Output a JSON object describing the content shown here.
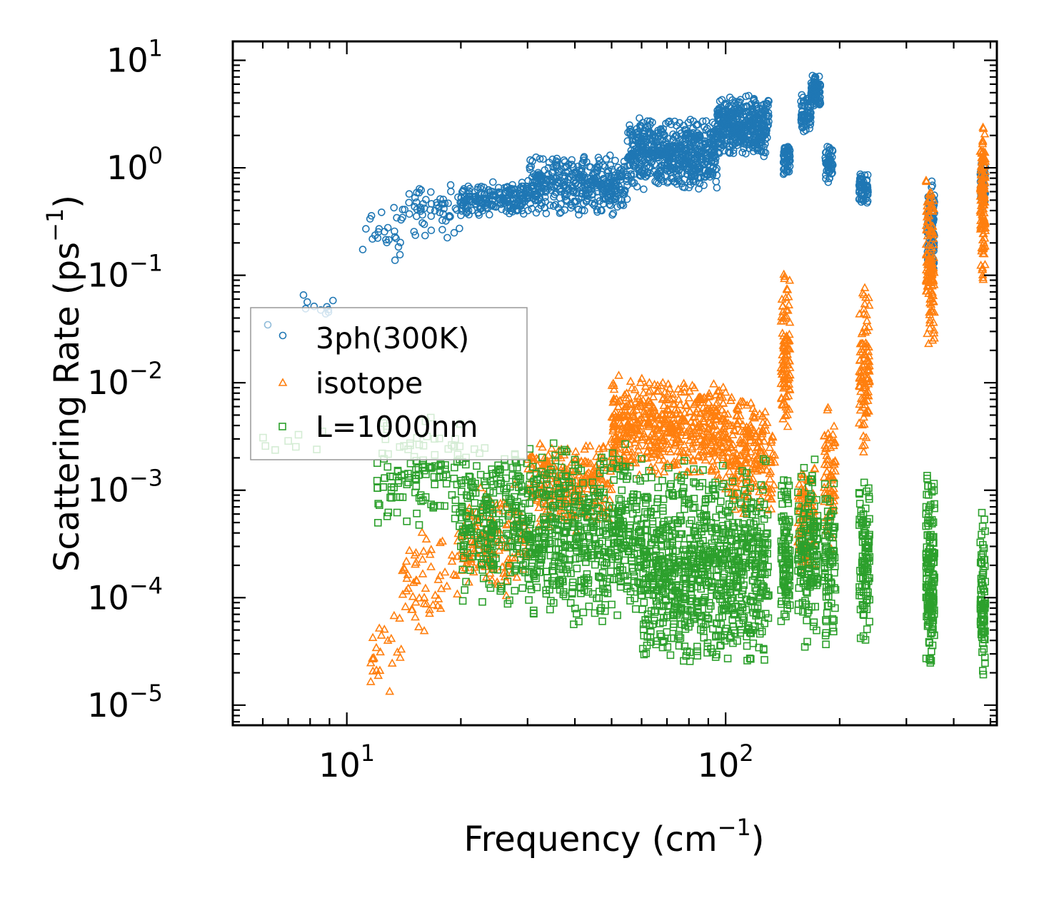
{
  "chart_data": {
    "type": "scatter",
    "title": "",
    "xlabel": "Frequency (cm",
    "xlabel_sup": "−1",
    "xlabel_close": ")",
    "ylabel": "Scattering Rate (ps",
    "ylabel_sup": "−1",
    "ylabel_close": ")",
    "xscale": "log",
    "yscale": "log",
    "xlim": [
      5.0,
      520
    ],
    "ylim": [
      6.5e-06,
      15
    ],
    "x_ticks": [
      {
        "value": 10,
        "base": "10",
        "exp": "1"
      },
      {
        "value": 100,
        "base": "10",
        "exp": "2"
      }
    ],
    "y_ticks": [
      {
        "value": 10,
        "base": "10",
        "exp": "1"
      },
      {
        "value": 1,
        "base": "10",
        "exp": "0"
      },
      {
        "value": 0.1,
        "base": "10",
        "exp": "−1"
      },
      {
        "value": 0.01,
        "base": "10",
        "exp": "−2"
      },
      {
        "value": 0.001,
        "base": "10",
        "exp": "−3"
      },
      {
        "value": 0.0001,
        "base": "10",
        "exp": "−4"
      },
      {
        "value": 1e-05,
        "base": "10",
        "exp": "−5"
      }
    ],
    "legend_position": "center-left",
    "series": [
      {
        "name": "3ph(300K)",
        "marker": "circle",
        "color": "#1f77b4",
        "clusters": [
          {
            "x": [
              7.4,
              9.2
            ],
            "y": [
              0.03,
              0.08
            ],
            "n": 10
          },
          {
            "x": [
              11.0,
              14.0
            ],
            "y": [
              0.1,
              0.7
            ],
            "n": 25
          },
          {
            "x": [
              14.0,
              20.0
            ],
            "y": [
              0.2,
              0.8
            ],
            "n": 60
          },
          {
            "x": [
              20.0,
              30.0
            ],
            "y": [
              0.35,
              0.75
            ],
            "n": 200
          },
          {
            "x": [
              30.0,
              55.0
            ],
            "y": [
              0.35,
              1.4
            ],
            "n": 400
          },
          {
            "x": [
              55.0,
              95.0
            ],
            "y": [
              0.6,
              3.0
            ],
            "n": 600
          },
          {
            "x": [
              95.0,
              130.0
            ],
            "y": [
              1.2,
              5.0
            ],
            "n": 400
          },
          {
            "x": [
              142.0,
              148.0
            ],
            "y": [
              0.8,
              1.8
            ],
            "n": 60
          },
          {
            "x": [
              158.0,
              168.0
            ],
            "y": [
              2.0,
              5.0
            ],
            "n": 70
          },
          {
            "x": [
              168.0,
              178.0
            ],
            "y": [
              3.5,
              7.5
            ],
            "n": 90
          },
          {
            "x": [
              183.0,
              192.0
            ],
            "y": [
              0.7,
              1.6
            ],
            "n": 50
          },
          {
            "x": [
              225.0,
              238.0
            ],
            "y": [
              0.45,
              0.95
            ],
            "n": 60
          },
          {
            "x": [
              340.0,
              356.0
            ],
            "y": [
              0.1,
              0.8
            ],
            "n": 90
          },
          {
            "x": [
              470.0,
              485.0
            ],
            "y": [
              0.4,
              1.2
            ],
            "n": 50
          }
        ]
      },
      {
        "name": "isotope",
        "marker": "triangle",
        "color": "#ff7f0e",
        "clusters": [
          {
            "x": [
              11.5,
              14.0
            ],
            "y": [
              1.2e-05,
              0.00013
            ],
            "n": 25
          },
          {
            "x": [
              14.0,
              20.0
            ],
            "y": [
              4e-05,
              0.0005
            ],
            "n": 60
          },
          {
            "x": [
              20.0,
              30.0
            ],
            "y": [
              0.0001,
              0.0012
            ],
            "n": 150
          },
          {
            "x": [
              30.0,
              50.0
            ],
            "y": [
              0.0004,
              0.003
            ],
            "n": 250
          },
          {
            "x": [
              50.0,
              100.0
            ],
            "y": [
              0.0012,
              0.012
            ],
            "n": 550
          },
          {
            "x": [
              100.0,
              135.0
            ],
            "y": [
              0.0005,
              0.009
            ],
            "n": 220
          },
          {
            "x": [
              140.0,
              148.0
            ],
            "y": [
              0.002,
              0.13
            ],
            "n": 100
          },
          {
            "x": [
              155.0,
              172.0
            ],
            "y": [
              0.00015,
              0.002
            ],
            "n": 90
          },
          {
            "x": [
              182.0,
              195.0
            ],
            "y": [
              0.0002,
              0.008
            ],
            "n": 70
          },
          {
            "x": [
              225.0,
              240.0
            ],
            "y": [
              0.002,
              0.12
            ],
            "n": 100
          },
          {
            "x": [
              338.0,
              356.0
            ],
            "y": [
              0.02,
              1.0
            ],
            "n": 130
          },
          {
            "x": [
              470.0,
              485.0
            ],
            "y": [
              0.08,
              3.5
            ],
            "n": 130
          }
        ]
      },
      {
        "name": "L=1000nm",
        "marker": "square",
        "color": "#2ca02c",
        "clusters": [
          {
            "x": [
              6.0,
              9.0
            ],
            "y": [
              0.002,
              0.004
            ],
            "n": 8
          },
          {
            "x": [
              12.0,
              20.0
            ],
            "y": [
              0.0004,
              0.005
            ],
            "n": 120
          },
          {
            "x": [
              20.0,
              30.0
            ],
            "y": [
              8e-05,
              0.003
            ],
            "n": 250
          },
          {
            "x": [
              30.0,
              60.0
            ],
            "y": [
              5e-05,
              0.003
            ],
            "n": 550
          },
          {
            "x": [
              60.0,
              130.0
            ],
            "y": [
              2e-05,
              0.002
            ],
            "n": 850
          },
          {
            "x": [
              140.0,
              148.0
            ],
            "y": [
              5e-05,
              0.0015
            ],
            "n": 100
          },
          {
            "x": [
              155.0,
              175.0
            ],
            "y": [
              3e-05,
              0.002
            ],
            "n": 150
          },
          {
            "x": [
              182.0,
              195.0
            ],
            "y": [
              3e-05,
              0.0015
            ],
            "n": 80
          },
          {
            "x": [
              225.0,
              240.0
            ],
            "y": [
              3e-05,
              0.0015
            ],
            "n": 100
          },
          {
            "x": [
              338.0,
              356.0
            ],
            "y": [
              2e-05,
              0.0018
            ],
            "n": 150
          },
          {
            "x": [
              470.0,
              485.0
            ],
            "y": [
              1.1e-05,
              0.0007
            ],
            "n": 80
          }
        ]
      }
    ]
  },
  "legend": [
    {
      "label": "3ph(300K)"
    },
    {
      "label": "isotope"
    },
    {
      "label": "L=1000nm"
    }
  ]
}
